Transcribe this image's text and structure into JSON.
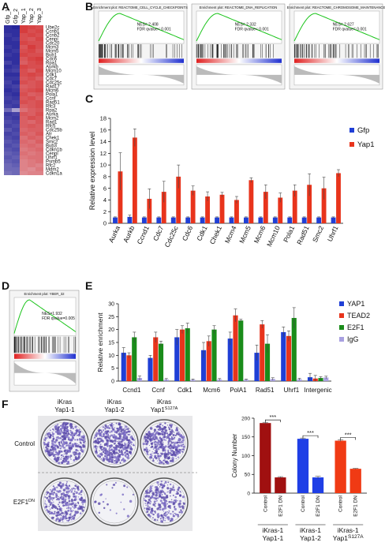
{
  "panels": [
    "A",
    "B",
    "C",
    "D",
    "E",
    "F"
  ],
  "enrichment_plots": [
    {
      "title": "Enrichment plot: REACTOME_CELL_CYCLE_CHECKPOINTS",
      "nes": "NES= 2.408",
      "fdr": "FDR qvalue< 0.001"
    },
    {
      "title": "Enrichment plot: REACTOME_DNA_REPLICATION",
      "nes": "NES= 2.332",
      "fdr": "FDR qvalue< 0.001"
    },
    {
      "title": "Enrichment plot: REACTOME_CHROMOSOME_MAINTENANCE",
      "nes": "NES= 2.627",
      "fdr": "FDR qvalue= 0.001"
    },
    {
      "title": "Enrichment plot: YBER_32",
      "nes": "NES=1.932",
      "fdr": "FDR qvalue=0.005"
    }
  ],
  "colony_assay": {
    "columns": [
      {
        "line1": "iKras",
        "line2": "Yap1-1",
        "sup": ""
      },
      {
        "line1": "iKras",
        "line2": "Yap1-2",
        "sup": ""
      },
      {
        "line1": "iKras",
        "line2": "Yap1",
        "sup": "S127A"
      }
    ],
    "rows": [
      {
        "label": "Control",
        "sup": ""
      },
      {
        "label": "E2F1",
        "sup": "DN"
      }
    ]
  },
  "chart_data": [
    {
      "type": "heatmap",
      "columns": [
        "Gfp_1",
        "Gfp_2",
        "Yap_1",
        "Yap_2",
        "Yap_3"
      ],
      "rows": [
        "Ube2c",
        "Ccnb1",
        "Ccnb2",
        "Cenpi",
        "Cdc20",
        "Mcm3",
        "Mcm5",
        "Bub1",
        "Cdc6",
        "Rpa1",
        "Aurkb",
        "Mcm10",
        "Cdk1",
        "Cdc7",
        "Cdc25c",
        "Rad17",
        "Mcm6",
        "Pola1",
        "Ccnf",
        "Rad51",
        "Rfc3",
        "Rpa2",
        "Aurka",
        "Mcm2",
        "Rad1",
        "Rfc5",
        "Cdc25b",
        "Atr",
        "Chek1",
        "Smc2",
        "Bub3",
        "Cdkn1b",
        "Cenpl",
        "Uhrf1",
        "Psmb5",
        "Rfc2",
        "Mdm2",
        "Cdkn1a"
      ],
      "zlim": [
        -1,
        1
      ],
      "low_color": "#1c1c96",
      "mid_color": "#e8dce8",
      "high_color": "#d42a2a",
      "values": [
        [
          -0.9,
          -0.95,
          0.9,
          0.85,
          0.8
        ],
        [
          -0.9,
          -0.9,
          0.9,
          0.8,
          0.85
        ],
        [
          -0.85,
          -0.9,
          0.8,
          0.85,
          0.8
        ],
        [
          -0.9,
          -0.85,
          0.8,
          0.75,
          0.85
        ],
        [
          -0.9,
          -0.9,
          0.85,
          0.8,
          0.8
        ],
        [
          -0.85,
          -0.9,
          0.75,
          0.9,
          0.8
        ],
        [
          -0.9,
          -0.85,
          0.8,
          0.85,
          0.75
        ],
        [
          -0.85,
          -0.9,
          0.85,
          0.8,
          0.8
        ],
        [
          -0.9,
          -0.9,
          0.75,
          0.85,
          0.9
        ],
        [
          -0.8,
          -0.9,
          0.7,
          0.8,
          0.85
        ],
        [
          -0.9,
          -0.85,
          0.85,
          0.8,
          0.8
        ],
        [
          -0.85,
          -0.8,
          0.8,
          0.7,
          0.85
        ],
        [
          -0.9,
          -0.9,
          0.8,
          0.85,
          0.8
        ],
        [
          -0.85,
          -0.85,
          0.75,
          0.8,
          0.7
        ],
        [
          -0.8,
          -0.9,
          0.8,
          0.75,
          0.8
        ],
        [
          -0.85,
          -0.8,
          0.7,
          0.75,
          0.8
        ],
        [
          -0.9,
          -0.85,
          0.75,
          0.8,
          0.85
        ],
        [
          -0.85,
          -0.9,
          0.8,
          0.7,
          0.75
        ],
        [
          -0.8,
          -0.85,
          0.75,
          0.8,
          0.7
        ],
        [
          -0.85,
          -0.8,
          0.8,
          0.75,
          0.8
        ],
        [
          -0.8,
          -0.85,
          0.7,
          0.75,
          0.8
        ],
        [
          -0.6,
          -0.3,
          0.6,
          0.7,
          0.75
        ],
        [
          -0.85,
          -0.8,
          0.75,
          0.7,
          0.8
        ],
        [
          -0.8,
          -0.85,
          0.7,
          0.8,
          0.75
        ],
        [
          -0.75,
          -0.8,
          0.7,
          0.65,
          0.75
        ],
        [
          -0.8,
          -0.75,
          0.7,
          0.75,
          0.7
        ],
        [
          -0.7,
          -0.8,
          0.65,
          0.7,
          0.7
        ],
        [
          -0.8,
          -0.75,
          0.7,
          0.65,
          0.75
        ],
        [
          -0.75,
          -0.8,
          0.6,
          0.7,
          0.65
        ],
        [
          -0.7,
          -0.75,
          0.65,
          0.6,
          0.7
        ],
        [
          -0.75,
          -0.7,
          0.6,
          0.65,
          0.6
        ],
        [
          -0.7,
          -0.75,
          0.55,
          0.6,
          0.65
        ],
        [
          -0.65,
          -0.7,
          0.6,
          0.55,
          0.6
        ],
        [
          -0.7,
          -0.65,
          0.55,
          0.6,
          0.6
        ],
        [
          -0.65,
          -0.7,
          0.5,
          0.55,
          0.6
        ],
        [
          -0.6,
          -0.65,
          0.5,
          0.55,
          0.5
        ],
        [
          -0.6,
          -0.6,
          0.5,
          0.45,
          0.55
        ],
        [
          -0.55,
          -0.6,
          0.45,
          0.5,
          0.5
        ]
      ]
    },
    {
      "type": "bar",
      "ylabel": "Relative expression level",
      "categories": [
        "Aurka",
        "Aurkb",
        "Ccnd1",
        "Cdc7",
        "Cdc25c",
        "Cdc6",
        "Cdk1",
        "Chek1",
        "Mcm4",
        "Mcm5",
        "Mcm6",
        "Mcm10",
        "Pola1",
        "Rad51",
        "Smc2",
        "Uhrf1"
      ],
      "series": [
        {
          "name": "Gfp",
          "color": "#1f3fd6",
          "values": [
            1,
            1.1,
            1,
            1,
            1,
            1,
            1,
            1,
            1,
            1,
            1,
            1,
            1,
            1,
            1,
            1
          ],
          "errors": [
            0.1,
            0.3,
            0.1,
            0.1,
            0.1,
            0.1,
            0.1,
            0.1,
            0.1,
            0.1,
            0.1,
            0.1,
            0.1,
            0.1,
            0.1,
            0.1
          ]
        },
        {
          "name": "Yap1",
          "color": "#e8341c",
          "values": [
            8.9,
            14.7,
            4.2,
            5.4,
            8.0,
            5.6,
            4.6,
            4.9,
            4.0,
            7.4,
            5.4,
            4.4,
            5.6,
            6.6,
            6.0,
            8.6
          ],
          "errors": [
            3.2,
            1.5,
            1.7,
            1.8,
            2.0,
            0.8,
            0.8,
            0.4,
            0.6,
            0.4,
            1.2,
            0.8,
            1.0,
            1.9,
            1.9,
            0.6
          ]
        }
      ],
      "ylim": [
        0,
        18
      ],
      "yticks": [
        0,
        2,
        4,
        6,
        8,
        10,
        12,
        14,
        16,
        18
      ],
      "legend": "upper right"
    },
    {
      "type": "bar",
      "ylabel": "Relative enrichment",
      "categories": [
        "Ccnd1",
        "Ccnf",
        "Cdk1",
        "Mcm6",
        "PolA1",
        "Rad51",
        "Uhrf1",
        "Intergenic"
      ],
      "series": [
        {
          "name": "YAP1",
          "color": "#1f3fd6",
          "values": [
            11,
            9,
            17,
            12,
            16.5,
            11,
            19,
            1.5
          ],
          "errors": [
            2,
            1,
            3,
            3,
            2.5,
            3,
            2,
            1.5
          ]
        },
        {
          "name": "TEAD2",
          "color": "#e8341c",
          "values": [
            10,
            17,
            20,
            15.5,
            25.5,
            22,
            17.5,
            1
          ],
          "errors": [
            1,
            2,
            1.5,
            2,
            2.5,
            1.5,
            2,
            1.2
          ]
        },
        {
          "name": "E2F1",
          "color": "#1a8c1a",
          "values": [
            17,
            14.5,
            20.5,
            20,
            23.5,
            14.5,
            24.5,
            1.2
          ],
          "errors": [
            2,
            1,
            2,
            1.5,
            0.5,
            3.5,
            4,
            0.5
          ]
        },
        {
          "name": "IgG",
          "color": "#a8a0e0",
          "values": [
            1.2,
            0.6,
            0.5,
            0.6,
            0.5,
            0.8,
            0.7,
            1.4
          ],
          "errors": [
            0.8,
            0.4,
            0.3,
            0.4,
            0.3,
            0.5,
            0.4,
            0.5
          ]
        }
      ],
      "ylim": [
        0,
        30
      ],
      "yticks": [
        0,
        5,
        10,
        15,
        20,
        25,
        30
      ],
      "legend": "right"
    },
    {
      "type": "bar",
      "ylabel": "Colony Number",
      "categories": [
        "Control",
        "E2F1 DN"
      ],
      "series": [
        {
          "name": [
            "iKras-1",
            "Yap1-1"
          ],
          "sup": "",
          "color": "#a01010",
          "values": [
            187,
            42
          ],
          "errors": [
            2,
            2
          ],
          "significance": "***"
        },
        {
          "name": [
            "iKras-1",
            "Yap1-2"
          ],
          "sup": "",
          "color": "#1f3fe6",
          "values": [
            145,
            42
          ],
          "errors": [
            2,
            3
          ],
          "significance": "***"
        },
        {
          "name": [
            "iKras-1",
            "Yap1"
          ],
          "sup": "S127A",
          "color": "#f03a14",
          "values": [
            140,
            65
          ],
          "errors": [
            2,
            1
          ],
          "significance": "***"
        }
      ],
      "ylim": [
        0,
        200
      ],
      "yticks": [
        0,
        50,
        100,
        150,
        200
      ]
    }
  ]
}
